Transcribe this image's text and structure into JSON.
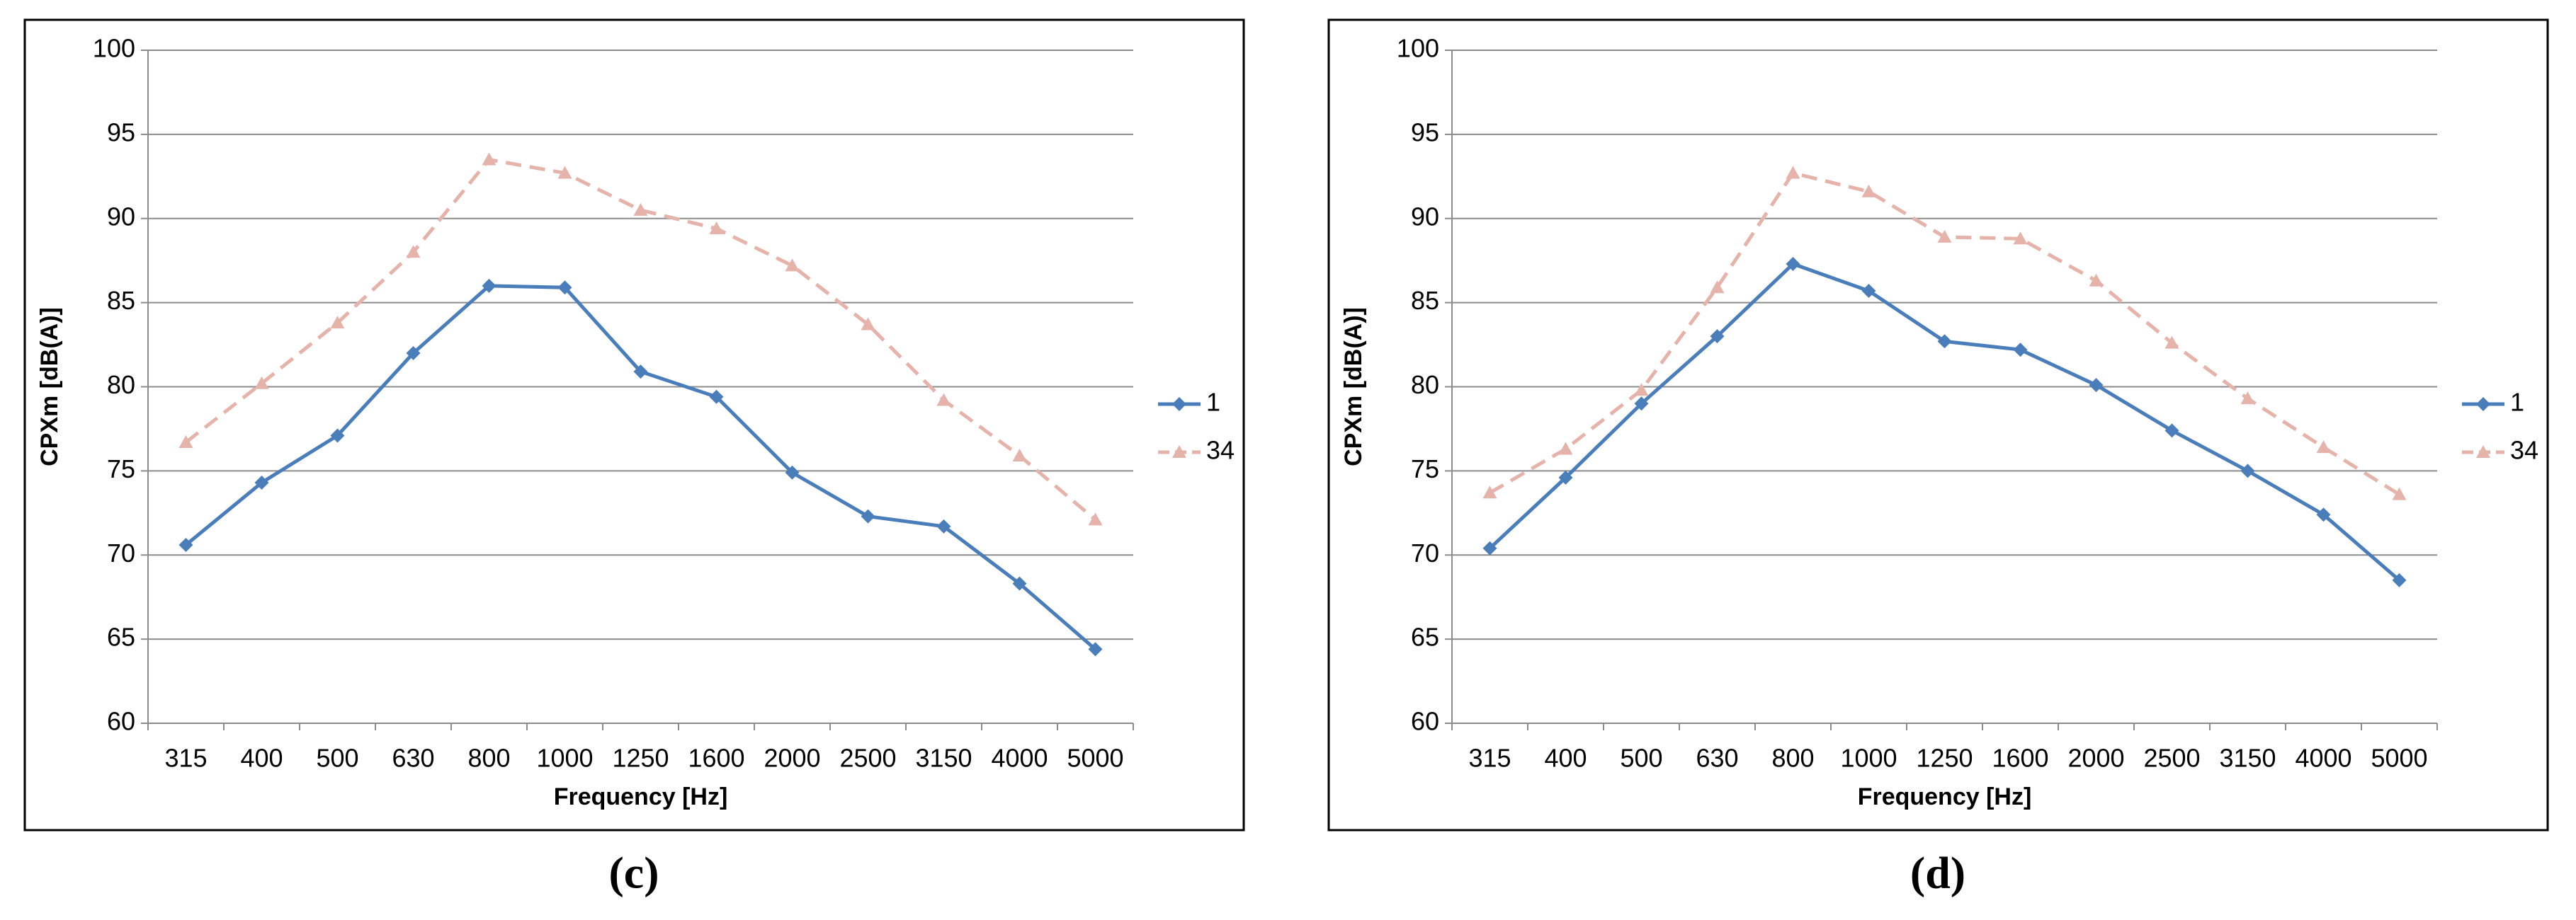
{
  "chart_data": [
    {
      "type": "line",
      "caption": "(c)",
      "xlabel": "Frequency [Hz]",
      "ylabel": "CPXm [dB(A)]",
      "categories": [
        "315",
        "400",
        "500",
        "630",
        "800",
        "1000",
        "1250",
        "1600",
        "2000",
        "2500",
        "3150",
        "4000",
        "5000"
      ],
      "series": [
        {
          "name": "1",
          "color": "#4a7ebb",
          "values": [
            70.6,
            74.3,
            77.1,
            82.0,
            86.0,
            85.9,
            80.9,
            79.4,
            74.9,
            72.3,
            71.7,
            68.3,
            64.4
          ]
        },
        {
          "name": "34",
          "color": "#e6b3ab",
          "values": [
            76.7,
            80.2,
            83.8,
            88.0,
            93.5,
            92.7,
            90.5,
            89.4,
            87.2,
            83.7,
            79.2,
            75.9,
            72.1
          ]
        }
      ],
      "ylim": [
        60,
        100
      ],
      "yticks": [
        60,
        65,
        70,
        75,
        80,
        85,
        90,
        95,
        100
      ],
      "grid": true,
      "legend": "right"
    },
    {
      "type": "line",
      "caption": "(d)",
      "xlabel": "Frequency [Hz]",
      "ylabel": "CPXm [dB(A)]",
      "categories": [
        "315",
        "400",
        "500",
        "630",
        "800",
        "1000",
        "1250",
        "1600",
        "2000",
        "2500",
        "3150",
        "4000",
        "5000"
      ],
      "series": [
        {
          "name": "1",
          "color": "#4a7ebb",
          "values": [
            70.4,
            74.6,
            79.0,
            83.0,
            87.3,
            85.7,
            82.7,
            82.2,
            80.1,
            77.4,
            75.0,
            72.4,
            68.5
          ]
        },
        {
          "name": "34",
          "color": "#e6b3ab",
          "values": [
            73.7,
            76.3,
            79.8,
            85.9,
            92.7,
            91.6,
            88.9,
            88.8,
            86.3,
            82.6,
            79.3,
            76.4,
            73.6
          ]
        }
      ],
      "ylim": [
        60,
        100
      ],
      "yticks": [
        60,
        65,
        70,
        75,
        80,
        85,
        90,
        95,
        100
      ],
      "grid": true,
      "legend": "right"
    }
  ]
}
